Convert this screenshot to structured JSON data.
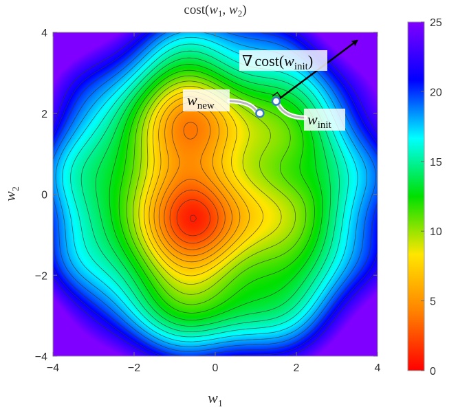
{
  "chart_data": {
    "type": "heatmap",
    "subtype": "density-contour",
    "title": {
      "base": "cost(",
      "v1": "w",
      "s1": "1",
      "sep": ", ",
      "v2": "w",
      "s2": "2",
      "close": ")"
    },
    "xlabel": {
      "v": "w",
      "s": "1"
    },
    "ylabel": {
      "v": "w",
      "s": "2"
    },
    "xlim": [
      -4,
      4
    ],
    "ylim": [
      -4,
      4
    ],
    "x_ticks": [
      -4,
      -2,
      0,
      2,
      4
    ],
    "y_ticks": [
      -4,
      -2,
      0,
      2,
      4
    ],
    "x_tick_labels": [
      "−4",
      "−2",
      "0",
      "2",
      "4"
    ],
    "y_tick_labels": [
      "−4",
      "−2",
      "0",
      "2",
      "4"
    ],
    "colorbar": {
      "range": [
        0,
        25
      ],
      "ticks": [
        0,
        5,
        10,
        15,
        20,
        25
      ],
      "tick_labels": [
        "0",
        "5",
        "10",
        "15",
        "20",
        "25"
      ],
      "colors": [
        "#ff0000",
        "#ff8000",
        "#ffe600",
        "#00e000",
        "#00ffff",
        "#0000ff",
        "#8000ff"
      ]
    },
    "contour_levels": [
      1,
      2,
      3,
      4,
      5,
      6,
      7,
      8,
      9,
      10,
      11,
      12,
      13,
      14,
      15,
      16,
      17,
      18,
      19,
      20,
      21,
      22
    ],
    "minima": [
      {
        "x": -0.5,
        "y": -0.8,
        "depth": 6.5
      },
      {
        "x": -0.6,
        "y": 2.0,
        "depth": 5.0
      }
    ],
    "points": {
      "w_init": {
        "x": 1.5,
        "y": 2.3
      },
      "w_new": {
        "x": 1.1,
        "y": 2.0
      }
    },
    "gradient_arrow": {
      "from": {
        "x": 1.5,
        "y": 2.3
      },
      "to": {
        "x": 3.5,
        "y": 3.8
      }
    },
    "annotations": {
      "gradient": {
        "nabla": "∇",
        "text": "cost(",
        "v": "w",
        "s": "init",
        "close": ")"
      },
      "w_new": {
        "v": "w",
        "s": "new"
      },
      "w_init": {
        "v": "w",
        "s": "init"
      }
    }
  }
}
